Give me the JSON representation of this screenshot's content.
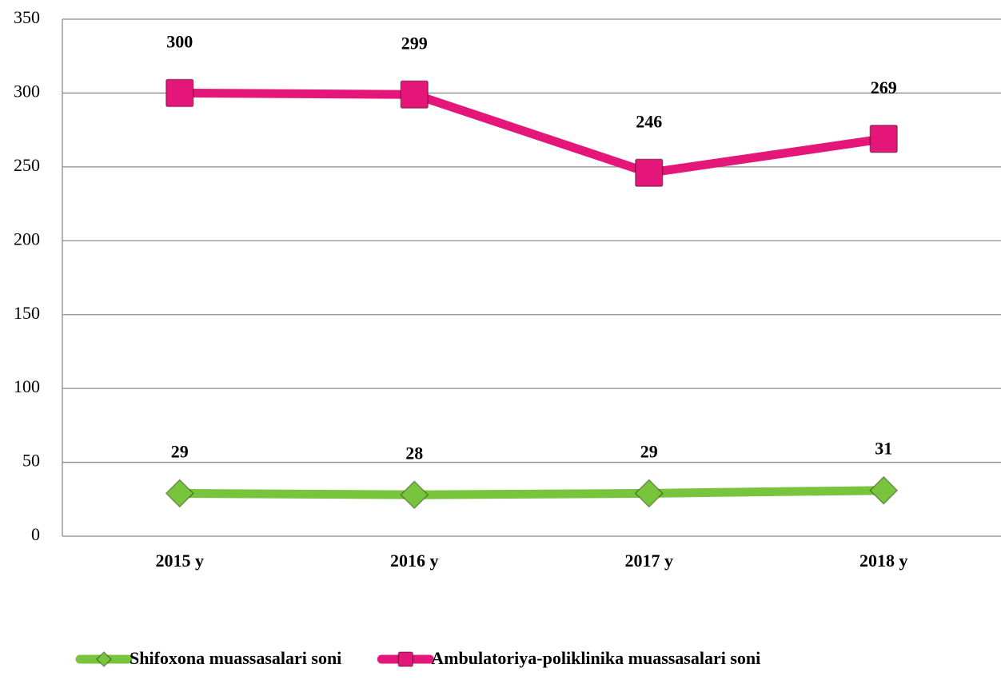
{
  "chart_data": {
    "type": "line",
    "categories": [
      "2015 y",
      "2016 y",
      "2017 y",
      "2018 y"
    ],
    "series": [
      {
        "name": "Shifoxona muassasalari soni",
        "color": "#78c43c",
        "marker": "diamond",
        "values": [
          29,
          28,
          29,
          31
        ]
      },
      {
        "name": "Ambulatoriya-poliklinika muassasalari soni",
        "color": "#e5167a",
        "marker": "square",
        "values": [
          300,
          299,
          246,
          269
        ]
      }
    ],
    "ylim": [
      0,
      350
    ],
    "yticks": [
      0,
      50,
      100,
      150,
      200,
      250,
      300,
      350
    ],
    "grid": true,
    "legend": "bottom"
  }
}
